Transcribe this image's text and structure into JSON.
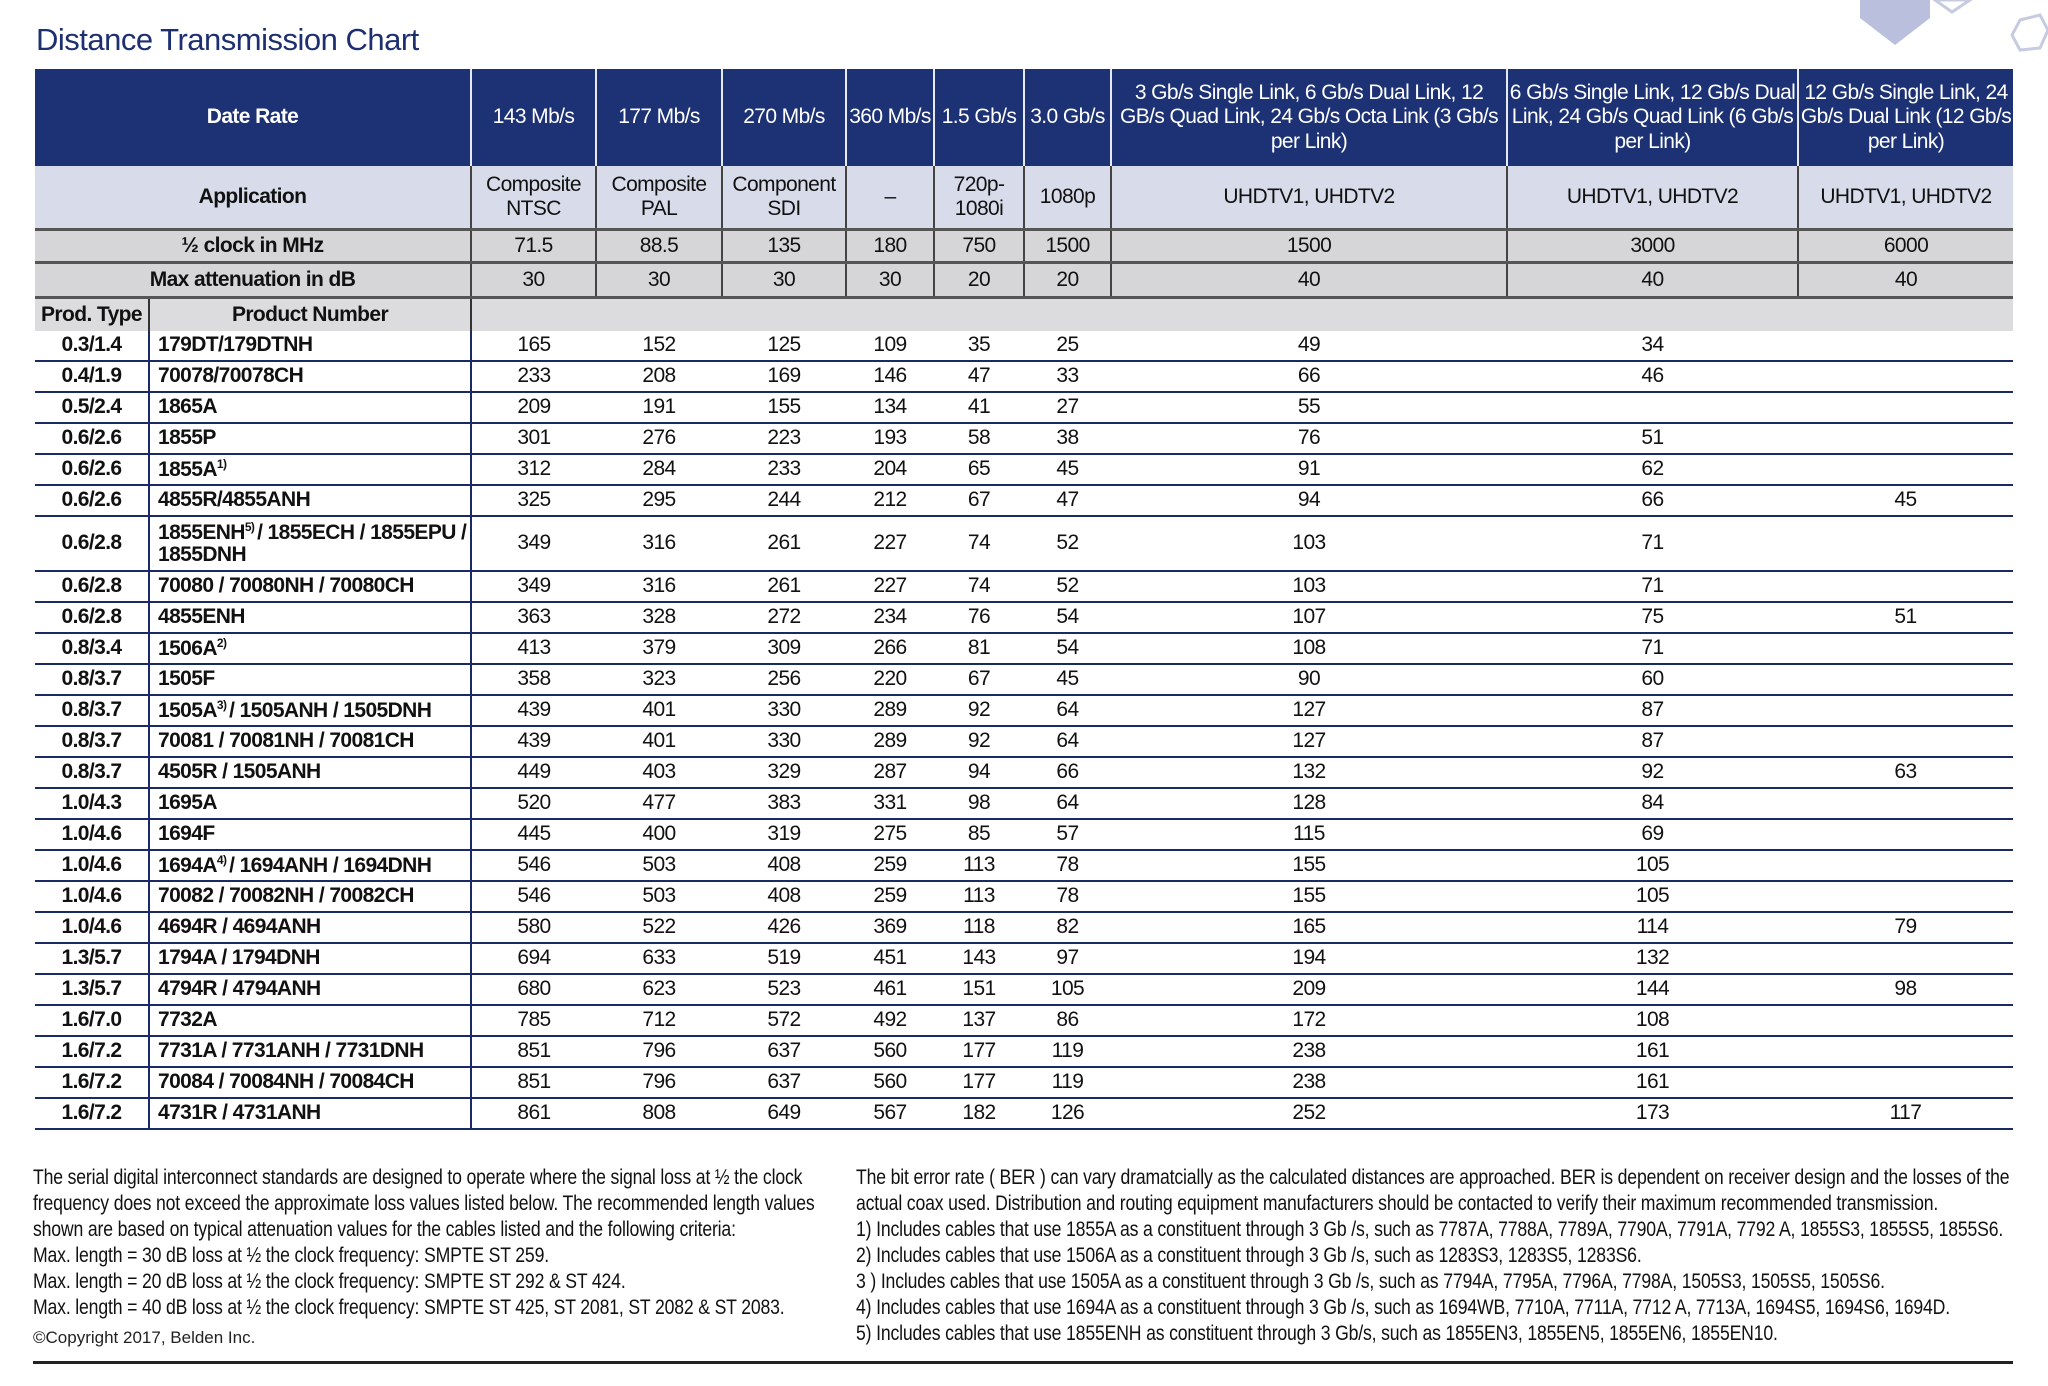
{
  "title": "Distance Transmission Chart",
  "header": {
    "rate_label": "Date Rate",
    "rates": [
      "143 Mb/s",
      "177 Mb/s",
      "270 Mb/s",
      "360 Mb/s",
      "1.5 Gb/s",
      "3.0 Gb/s",
      "3 Gb/s Single Link, 6 Gb/s Dual Link, 12 GB/s Quad Link, 24 Gb/s Octa Link (3 Gb/s per Link)",
      "6 Gb/s Single Link, 12 Gb/s Dual Link, 24 Gb/s Quad Link (6 Gb/s per Link)",
      "12 Gb/s Single Link, 24 Gb/s Dual Link (12 Gb/s per Link)"
    ],
    "application_label": "Application",
    "applications": [
      "Composite NTSC",
      "Composite PAL",
      "Component SDI",
      "–",
      "720p-1080i",
      "1080p",
      "UHDTV1, UHDTV2",
      "UHDTV1, UHDTV2",
      "UHDTV1, UHDTV2"
    ],
    "clock_label": "½ clock in MHz",
    "clocks": [
      "71.5",
      "88.5",
      "135",
      "180",
      "750",
      "1500",
      "1500",
      "3000",
      "6000"
    ],
    "attenuation_label": "Max attenuation in dB",
    "attenuations": [
      "30",
      "30",
      "30",
      "30",
      "20",
      "20",
      "40",
      "40",
      "40"
    ],
    "prod_type_label": "Prod. Type",
    "product_number_label": "Product Number"
  },
  "rows": [
    {
      "type": "0.3/1.4",
      "product": "179DT/179DTNH",
      "note": "",
      "values": [
        "165",
        "152",
        "125",
        "109",
        "35",
        "25",
        "49",
        "34",
        ""
      ]
    },
    {
      "type": "0.4/1.9",
      "product": "70078/70078CH",
      "note": "",
      "values": [
        "233",
        "208",
        "169",
        "146",
        "47",
        "33",
        "66",
        "46",
        ""
      ]
    },
    {
      "type": "0.5/2.4",
      "product": "1865A",
      "note": "",
      "values": [
        "209",
        "191",
        "155",
        "134",
        "41",
        "27",
        "55",
        "",
        ""
      ]
    },
    {
      "type": "0.6/2.6",
      "product": "1855P",
      "note": "",
      "values": [
        "301",
        "276",
        "223",
        "193",
        "58",
        "38",
        "76",
        "51",
        ""
      ]
    },
    {
      "type": "0.6/2.6",
      "product": "1855A",
      "note": "1)",
      "values": [
        "312",
        "284",
        "233",
        "204",
        "65",
        "45",
        "91",
        "62",
        ""
      ]
    },
    {
      "type": "0.6/2.6",
      "product": "4855R/4855ANH",
      "note": "",
      "values": [
        "325",
        "295",
        "244",
        "212",
        "67",
        "47",
        "94",
        "66",
        "45"
      ]
    },
    {
      "type": "0.6/2.8",
      "product": "1855ENH",
      "note": "5)",
      "product_rest": "/ 1855ECH / 1855EPU / 1855DNH",
      "values": [
        "349",
        "316",
        "261",
        "227",
        "74",
        "52",
        "103",
        "71",
        ""
      ]
    },
    {
      "type": "0.6/2.8",
      "product": "70080 / 70080NH / 70080CH",
      "note": "",
      "values": [
        "349",
        "316",
        "261",
        "227",
        "74",
        "52",
        "103",
        "71",
        ""
      ]
    },
    {
      "type": "0.6/2.8",
      "product": "4855ENH",
      "note": "",
      "values": [
        "363",
        "328",
        "272",
        "234",
        "76",
        "54",
        "107",
        "75",
        "51"
      ]
    },
    {
      "type": "0.8/3.4",
      "product": "1506A",
      "note": "2)",
      "values": [
        "413",
        "379",
        "309",
        "266",
        "81",
        "54",
        "108",
        "71",
        ""
      ]
    },
    {
      "type": "0.8/3.7",
      "product": "1505F",
      "note": "",
      "values": [
        "358",
        "323",
        "256",
        "220",
        "67",
        "45",
        "90",
        "60",
        ""
      ]
    },
    {
      "type": "0.8/3.7",
      "product": "1505A",
      "note": "3)",
      "product_rest": "/ 1505ANH / 1505DNH",
      "values": [
        "439",
        "401",
        "330",
        "289",
        "92",
        "64",
        "127",
        "87",
        ""
      ]
    },
    {
      "type": "0.8/3.7",
      "product": "70081 / 70081NH / 70081CH",
      "note": "",
      "values": [
        "439",
        "401",
        "330",
        "289",
        "92",
        "64",
        "127",
        "87",
        ""
      ]
    },
    {
      "type": "0.8/3.7",
      "product": "4505R / 1505ANH",
      "note": "",
      "values": [
        "449",
        "403",
        "329",
        "287",
        "94",
        "66",
        "132",
        "92",
        "63"
      ]
    },
    {
      "type": "1.0/4.3",
      "product": "1695A",
      "note": "",
      "values": [
        "520",
        "477",
        "383",
        "331",
        "98",
        "64",
        "128",
        "84",
        ""
      ]
    },
    {
      "type": "1.0/4.6",
      "product": "1694F",
      "note": "",
      "values": [
        "445",
        "400",
        "319",
        "275",
        "85",
        "57",
        "115",
        "69",
        ""
      ]
    },
    {
      "type": "1.0/4.6",
      "product": "1694A",
      "note": "4)",
      "product_rest": "/ 1694ANH / 1694DNH",
      "values": [
        "546",
        "503",
        "408",
        "259",
        "113",
        "78",
        "155",
        "105",
        ""
      ]
    },
    {
      "type": "1.0/4.6",
      "product": "70082 / 70082NH / 70082CH",
      "note": "",
      "values": [
        "546",
        "503",
        "408",
        "259",
        "113",
        "78",
        "155",
        "105",
        ""
      ]
    },
    {
      "type": "1.0/4.6",
      "product": "4694R / 4694ANH",
      "note": "",
      "values": [
        "580",
        "522",
        "426",
        "369",
        "118",
        "82",
        "165",
        "114",
        "79"
      ]
    },
    {
      "type": "1.3/5.7",
      "product": "1794A / 1794DNH",
      "note": "",
      "values": [
        "694",
        "633",
        "519",
        "451",
        "143",
        "97",
        "194",
        "132",
        ""
      ]
    },
    {
      "type": "1.3/5.7",
      "product": "4794R / 4794ANH",
      "note": "",
      "values": [
        "680",
        "623",
        "523",
        "461",
        "151",
        "105",
        "209",
        "144",
        "98"
      ]
    },
    {
      "type": "1.6/7.0",
      "product": "7732A",
      "note": "",
      "values": [
        "785",
        "712",
        "572",
        "492",
        "137",
        "86",
        "172",
        "108",
        ""
      ]
    },
    {
      "type": "1.6/7.2",
      "product": "7731A / 7731ANH / 7731DNH",
      "note": "",
      "values": [
        "851",
        "796",
        "637",
        "560",
        "177",
        "119",
        "238",
        "161",
        ""
      ]
    },
    {
      "type": "1.6/7.2",
      "product": "70084 / 70084NH / 70084CH",
      "note": "",
      "values": [
        "851",
        "796",
        "637",
        "560",
        "177",
        "119",
        "238",
        "161",
        ""
      ]
    },
    {
      "type": "1.6/7.2",
      "product": "4731R / 4731ANH",
      "note": "",
      "values": [
        "861",
        "808",
        "649",
        "567",
        "182",
        "126",
        "252",
        "173",
        "117"
      ]
    }
  ],
  "footer": {
    "left": [
      "The serial digital interconnect standards are designed to operate where the signal loss at ½ the clock frequency does not exceed the approximate loss values listed below. The recommended length values shown are based on typical attenuation values for the cables listed and the following criteria:",
      "Max. length = 30 dB loss at ½ the clock frequency: SMPTE ST 259.",
      "Max. length = 20 dB loss at ½ the clock frequency: SMPTE ST 292 & ST 424.",
      "Max. length = 40 dB loss at ½ the clock frequency: SMPTE ST 425, ST 2081, ST 2082 & ST 2083."
    ],
    "copyright": "©Copyright 2017, Belden Inc.",
    "right": [
      "The bit error rate ( BER ) can vary dramatcially as the calculated distances are approached. BER is dependent on receiver design and the losses of the actual coax used. Distribution and routing equipment manufacturers should be contacted to verify their maximum recommended transmission.",
      "1) Includes cables that use 1855A as a constituent through 3 Gb /s, such as 7787A, 7788A, 7789A, 7790A, 7791A, 7792 A, 1855S3, 1855S5, 1855S6.",
      "2) Includes cables that use 1506A as a constituent through 3 Gb /s, such as 1283S3, 1283S5, 1283S6.",
      "3 ) Includes cables that use 1505A as a constituent through 3 Gb /s, such as 7794A, 7795A, 7796A, 7798A, 1505S3, 1505S5, 1505S6.",
      "4) Includes cables that use 1694A as a constituent through 3 Gb /s, such as 1694WB, 7710A, 7711A, 7712 A, 7713A, 1694S5, 1694S6, 1694D.",
      "5) Includes cables that use 1855ENH as constituent through 3 Gb/s, such as 1855EN3, 1855EN5, 1855EN6, 1855EN10."
    ]
  },
  "colors": {
    "header_bg": "#1d3275",
    "application_bg": "#d8dbe9",
    "gray_row_bg": "#d6d6d8",
    "rule": "#1a2a66",
    "title": "#1d2f70"
  },
  "decoration_icon": "hexagon-pattern"
}
